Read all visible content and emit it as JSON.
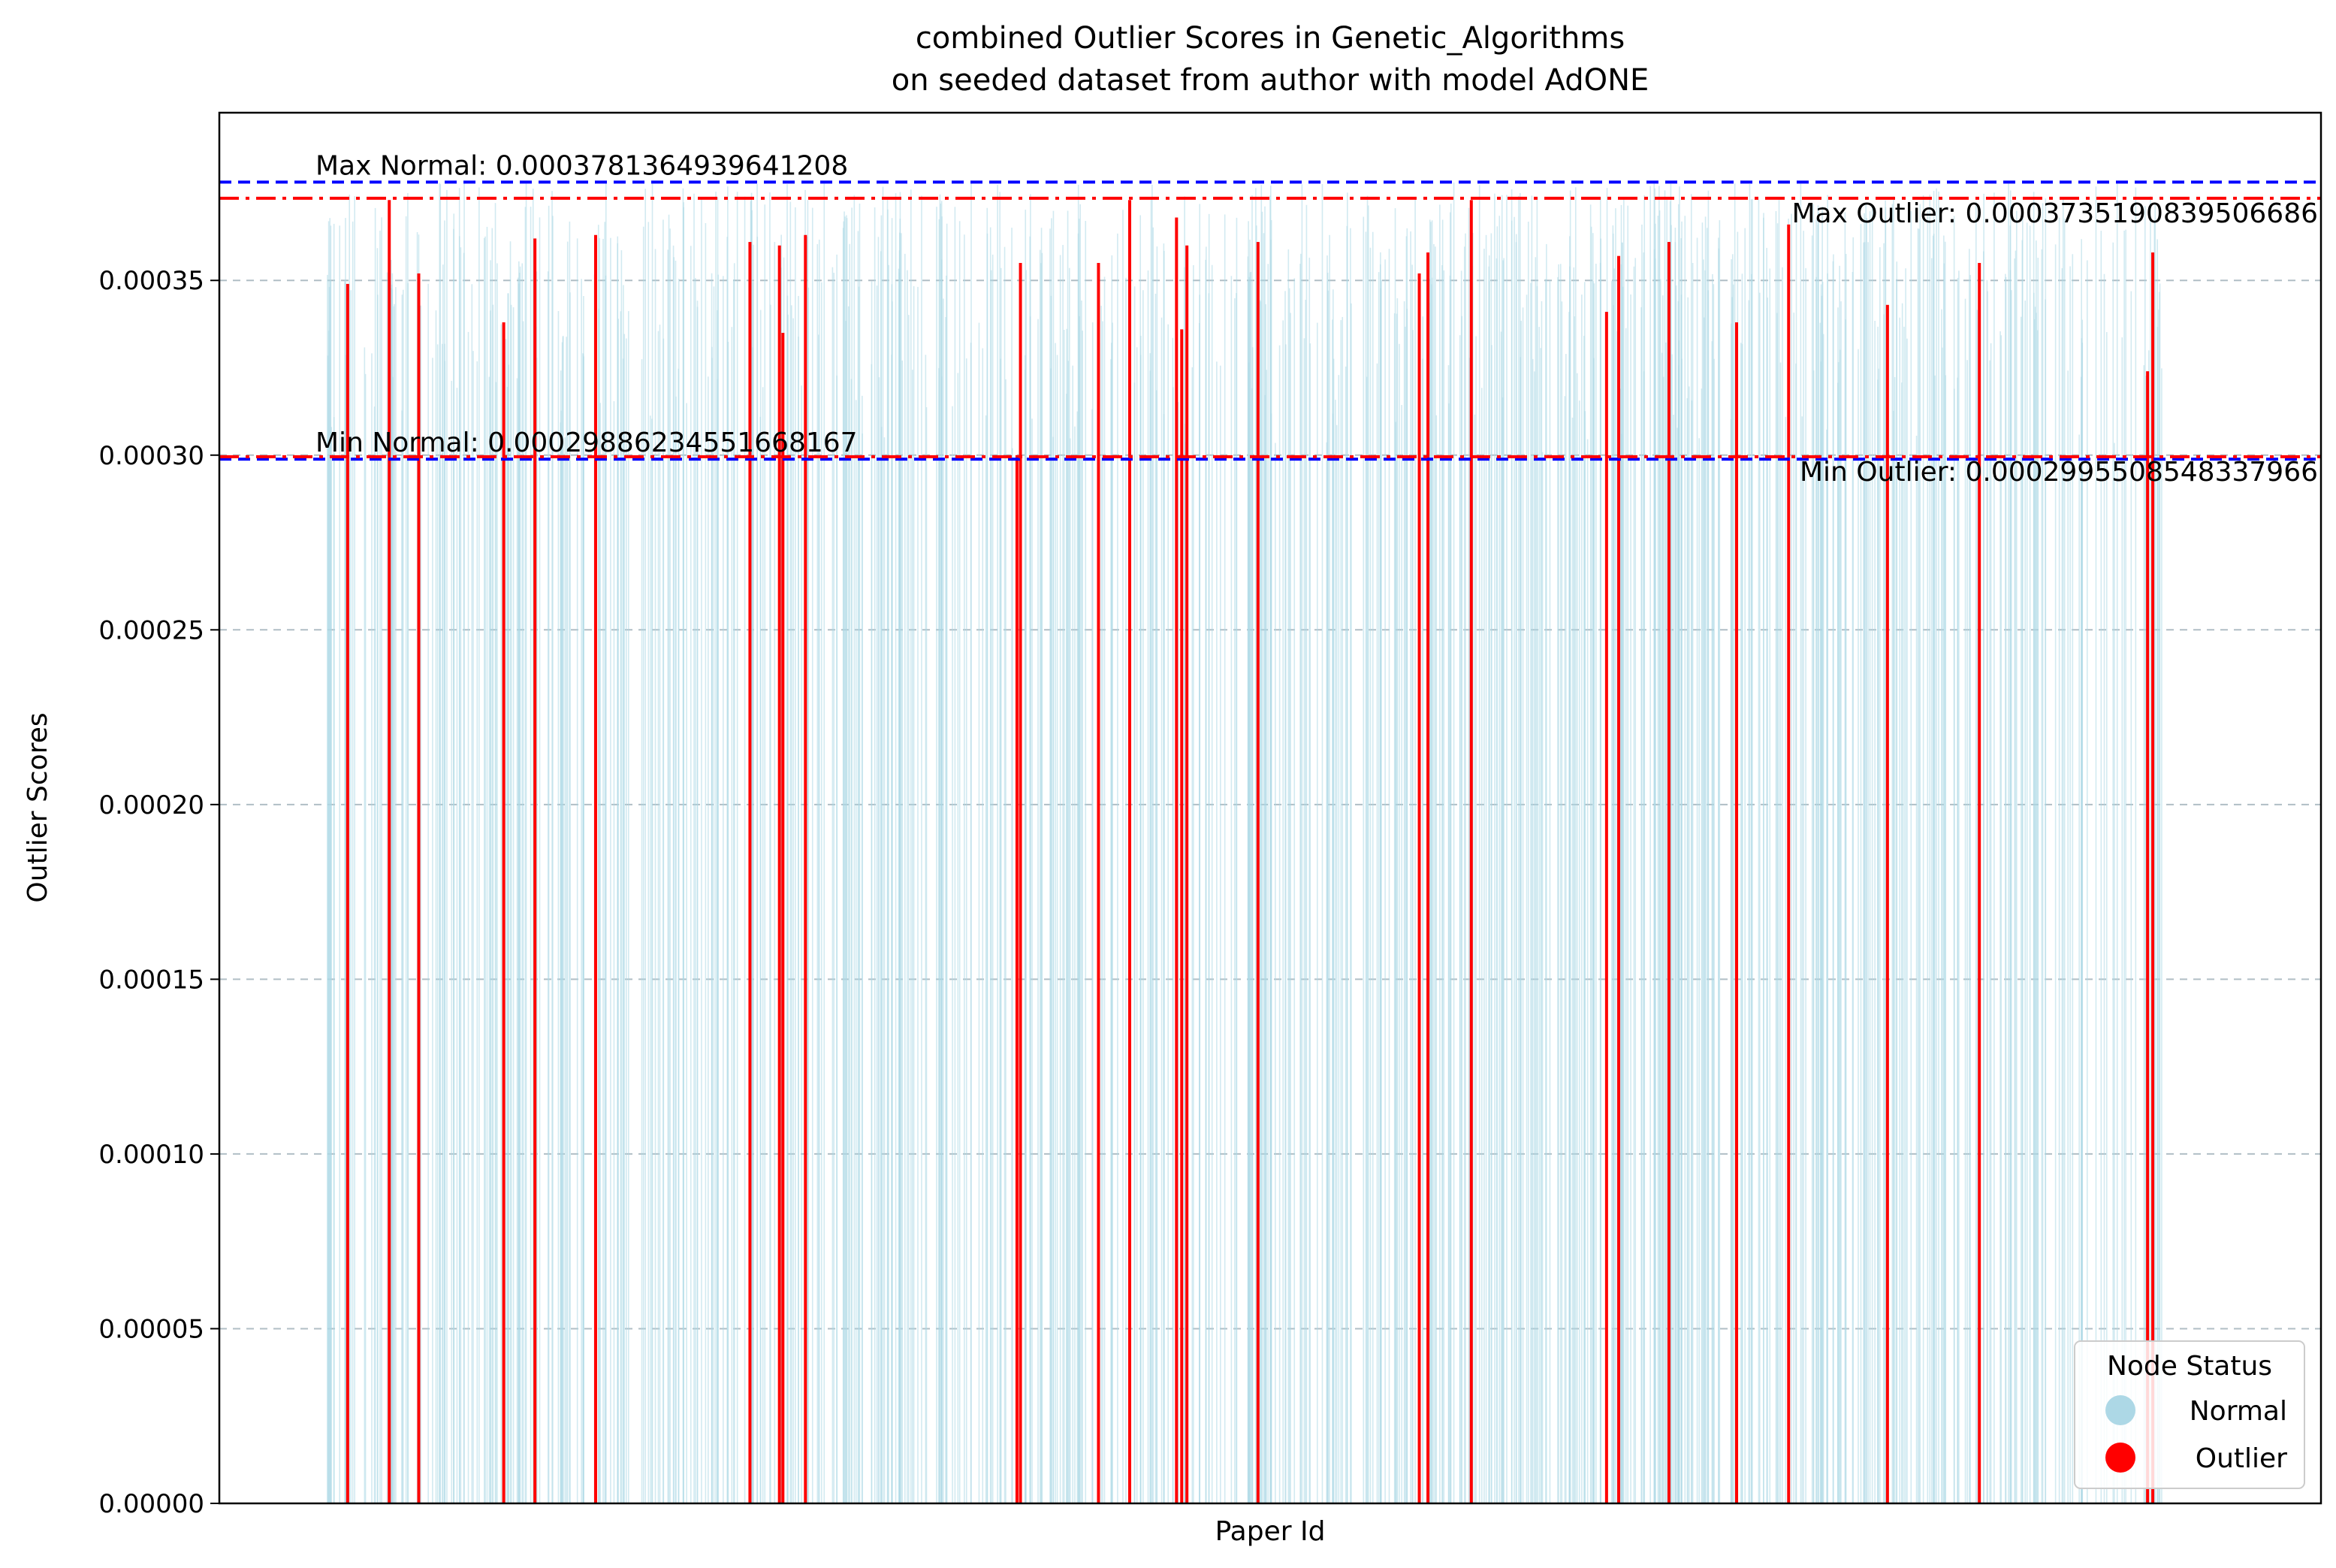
{
  "chart_data": {
    "type": "bar",
    "title": "combined Outlier Scores in Genetic_Algorithms",
    "subtitle": "on seeded dataset from author with model AdONE",
    "xlabel": "Paper Id",
    "ylabel": "Outlier Scores",
    "ylim": [
      0,
      0.000398
    ],
    "y_ticks": [
      "0.00000",
      "0.00005",
      "0.00010",
      "0.00015",
      "0.00020",
      "0.00025",
      "0.00030",
      "0.00035"
    ],
    "y_tick_values": [
      0,
      5e-05,
      0.0001,
      0.00015,
      0.0002,
      0.00025,
      0.0003,
      0.00035
    ],
    "grid": "y-dashed",
    "x_ticks_visible": false,
    "x_range": [
      -62,
      1150
    ],
    "colors": {
      "normal": "#add8e6",
      "outlier": "#ff0000",
      "normal_line": "#0000ff",
      "outlier_line": "#ff0000",
      "grid": "#b0bec5"
    },
    "legend": {
      "title": "Node Status",
      "placement": "lower right",
      "entries": [
        {
          "label": "Normal",
          "color": "#add8e6"
        },
        {
          "label": "Outlier",
          "color": "#ff0000"
        }
      ]
    },
    "reference_lines": [
      {
        "name": "Max Normal",
        "value": 0.0003781364939641208,
        "label": "Max Normal: 0.0003781364939641208",
        "color": "#0000ff",
        "style": "dashed"
      },
      {
        "name": "Min Normal",
        "value": 0.00029886234551668167,
        "label": "Min Normal: 0.00029886234551668167",
        "color": "#0000ff",
        "style": "dashed"
      },
      {
        "name": "Max Outlier",
        "value": 0.0003735190839506686,
        "label": "Max Outlier: 0.0003735190839506686",
        "color": "#ff0000",
        "style": "dashdot"
      },
      {
        "name": "Min Outlier",
        "value": 0.0002995508548337966,
        "label": "Min Outlier: 0.0002995508548337966",
        "color": "#ff0000",
        "style": "dashdot"
      }
    ],
    "outliers": {
      "x": [
        12,
        36,
        53,
        102,
        120,
        155,
        244,
        261,
        263,
        276,
        398,
        400,
        445,
        463,
        490,
        493,
        496,
        537,
        630,
        635,
        660,
        738,
        745,
        774,
        813,
        843,
        900,
        953,
        1050,
        1053
      ],
      "values": [
        0.000349,
        0.000373,
        0.000352,
        0.000338,
        0.000362,
        0.000363,
        0.000361,
        0.00036,
        0.000335,
        0.000363,
        0.0003,
        0.000355,
        0.000355,
        0.000373,
        0.000368,
        0.000336,
        0.00036,
        0.000361,
        0.000352,
        0.000358,
        0.000373,
        0.000341,
        0.000357,
        0.000361,
        0.000338,
        0.000366,
        0.000343,
        0.000355,
        0.000324,
        0.000358
      ]
    },
    "normals": {
      "x_range": [
        0,
        1058
      ],
      "count": 960,
      "value_range": [
        0.00029886234551668167,
        0.0003781364939641208
      ]
    }
  }
}
